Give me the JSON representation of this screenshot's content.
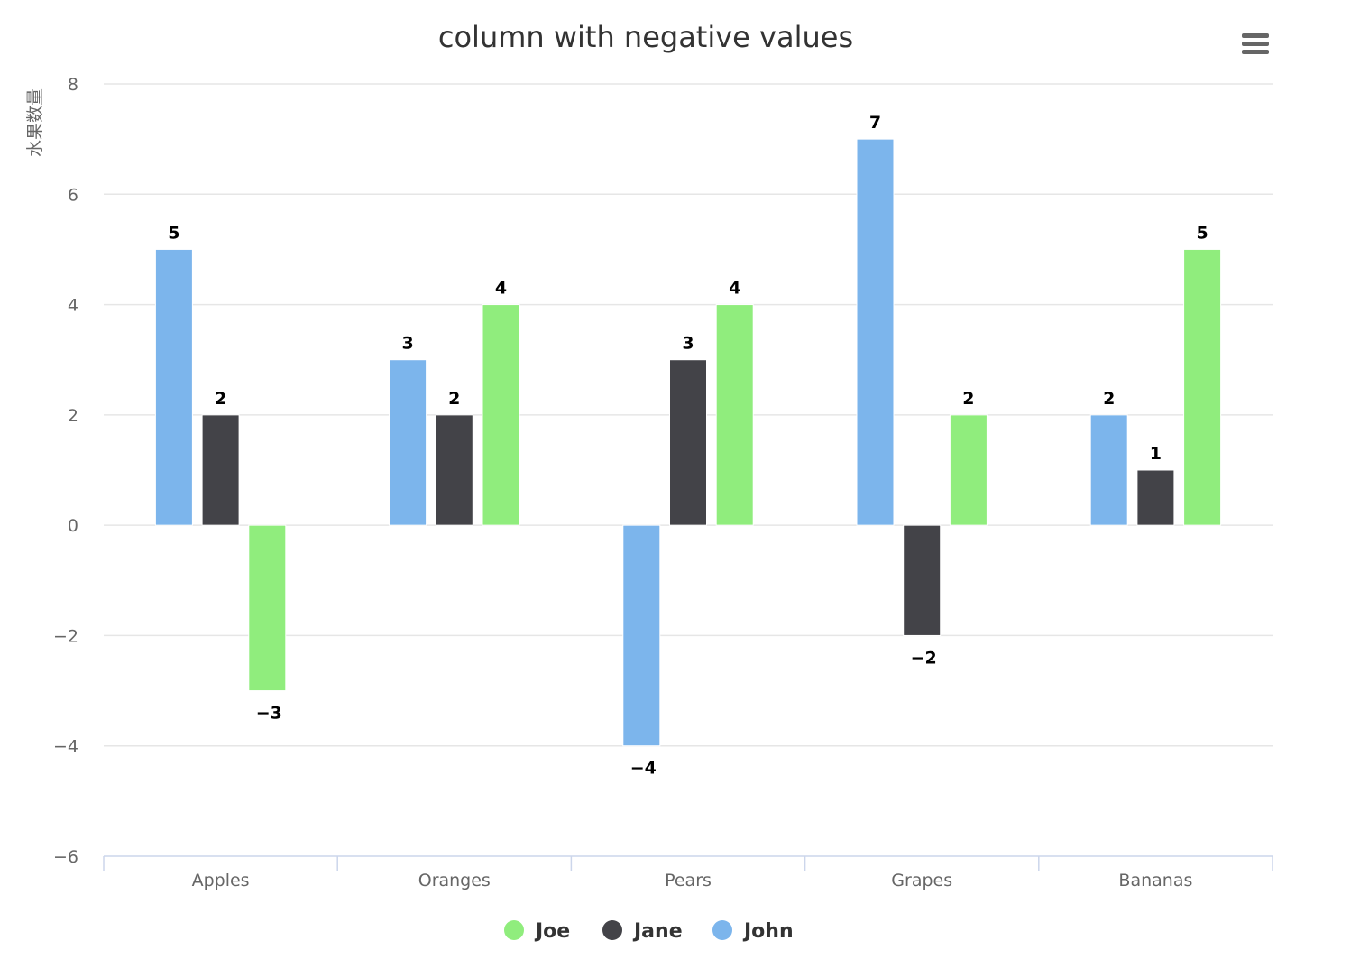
{
  "chart_data": {
    "type": "bar",
    "title": "column with negative values",
    "xlabel": "",
    "ylabel": "水果数量",
    "categories": [
      "Apples",
      "Oranges",
      "Pears",
      "Grapes",
      "Bananas"
    ],
    "ylim": [
      -6,
      8
    ],
    "yticks": [
      8,
      6,
      4,
      2,
      0,
      -2,
      -4,
      -6
    ],
    "ytick_labels": [
      "8",
      "6",
      "4",
      "2",
      "0",
      "−2",
      "−4",
      "−6"
    ],
    "grid": true,
    "legend_position": "bottom-center",
    "series": [
      {
        "name": "John",
        "color": "#7cb5ec",
        "values": [
          5,
          3,
          -4,
          7,
          2
        ],
        "labels": [
          "5",
          "3",
          "−4",
          "7",
          "2"
        ]
      },
      {
        "name": "Jane",
        "color": "#434348",
        "values": [
          2,
          2,
          3,
          -2,
          1
        ],
        "labels": [
          "2",
          "2",
          "3",
          "−2",
          "1"
        ]
      },
      {
        "name": "Joe",
        "color": "#90ed7d",
        "values": [
          -3,
          4,
          4,
          2,
          5
        ],
        "labels": [
          "−3",
          "4",
          "4",
          "2",
          "5"
        ]
      }
    ],
    "legend_order": [
      "Joe",
      "Jane",
      "John"
    ]
  },
  "toolbar": {
    "menu_icon": "hamburger-menu-icon"
  }
}
